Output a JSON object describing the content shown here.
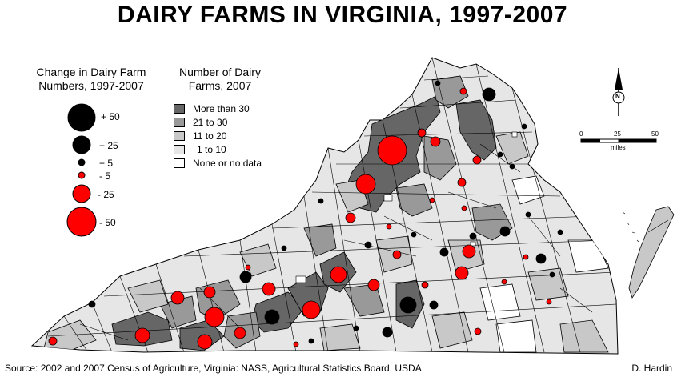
{
  "title": "DAIRY FARMS IN VIRGINIA, 1997-2007",
  "change_legend": {
    "title_line1": "Change in Dairy Farm",
    "title_line2": "Numbers, 1997-2007",
    "items": [
      {
        "label": "+ 50",
        "value": 50,
        "color": "#000000"
      },
      {
        "label": "+ 25",
        "value": 25,
        "color": "#000000"
      },
      {
        "label": "+ 5",
        "value": 5,
        "color": "#000000"
      },
      {
        "label": "- 5",
        "value": -5,
        "color": "#ff0000"
      },
      {
        "label": "- 25",
        "value": -25,
        "color": "#ff0000"
      },
      {
        "label": "- 50",
        "value": -50,
        "color": "#ff0000"
      }
    ]
  },
  "count_legend": {
    "title_line1": "Number of Dairy",
    "title_line2": "Farms, 2007",
    "classes": [
      {
        "label": "More than 30",
        "color": "#666666"
      },
      {
        "label": "21 to 30",
        "color": "#999999"
      },
      {
        "label": "11 to 20",
        "color": "#c8c8c8"
      },
      {
        "label": "1 to 10",
        "color": "#e6e6e6"
      },
      {
        "label": "None or no data",
        "color": "#ffffff"
      }
    ]
  },
  "scale": {
    "ticks": [
      "0",
      "25",
      "50"
    ],
    "unit": "miles"
  },
  "north_label": "N",
  "source": "Source: 2002 and 2007 Census of Agriculture, Virginia: NASS, Agricultural Statistics Board, USDA",
  "author": "D. Hardin",
  "colors": {
    "border": "#000000",
    "water": "#ffffff"
  }
}
